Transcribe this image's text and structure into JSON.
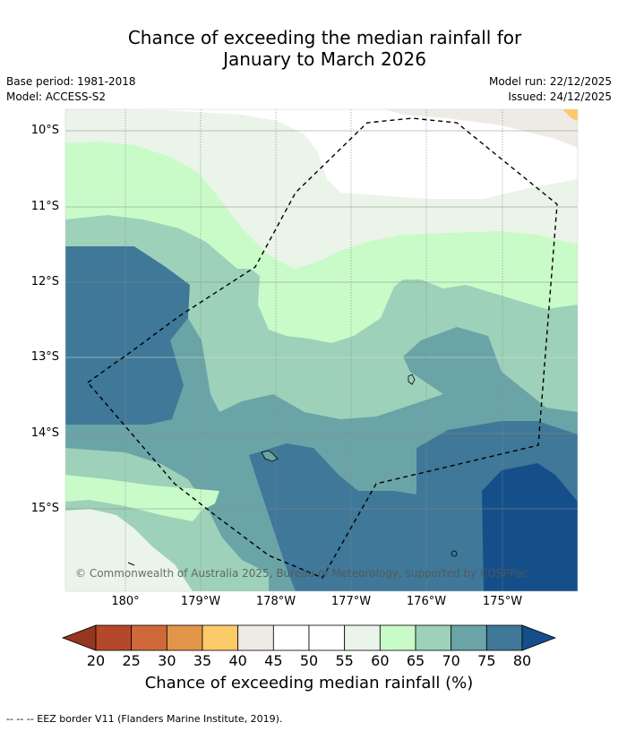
{
  "title_line1": "Chance of exceeding the median rainfall for",
  "title_line2": "January to March 2026",
  "base_period": "Base period: 1981-2018",
  "model": "Model: ACCESS-S2",
  "model_run": "Model run: 22/12/2025",
  "issued": "Issued: 24/12/2025",
  "lat_labels": [
    "10°S",
    "11°S",
    "12°S",
    "13°S",
    "14°S",
    "15°S"
  ],
  "lon_labels": [
    "180°",
    "179°W",
    "178°W",
    "177°W",
    "176°W",
    "175°W"
  ],
  "copyright": "© Commonwealth of Australia 2025, Bureau of Meteorology, supported by COSPPac",
  "colorbar": {
    "ticks": [
      "20",
      "25",
      "30",
      "35",
      "40",
      "45",
      "50",
      "55",
      "60",
      "65",
      "70",
      "75",
      "80"
    ],
    "colors": [
      "#b5482a",
      "#d0693a",
      "#e09548",
      "#fdca6a",
      "#eeebe6",
      "#ffffff",
      "#ffffff",
      "#eaf4e8",
      "#c9fbc9",
      "#9dd1b9",
      "#6aa4a7",
      "#3f7898"
    ],
    "under_color": "#953620",
    "over_color": "#154f8a",
    "title": "Chance of exceeding median rainfall (%)"
  },
  "footer": "--  --  -- EEZ border V11 (Flanders Marine Institute, 2019)."
}
